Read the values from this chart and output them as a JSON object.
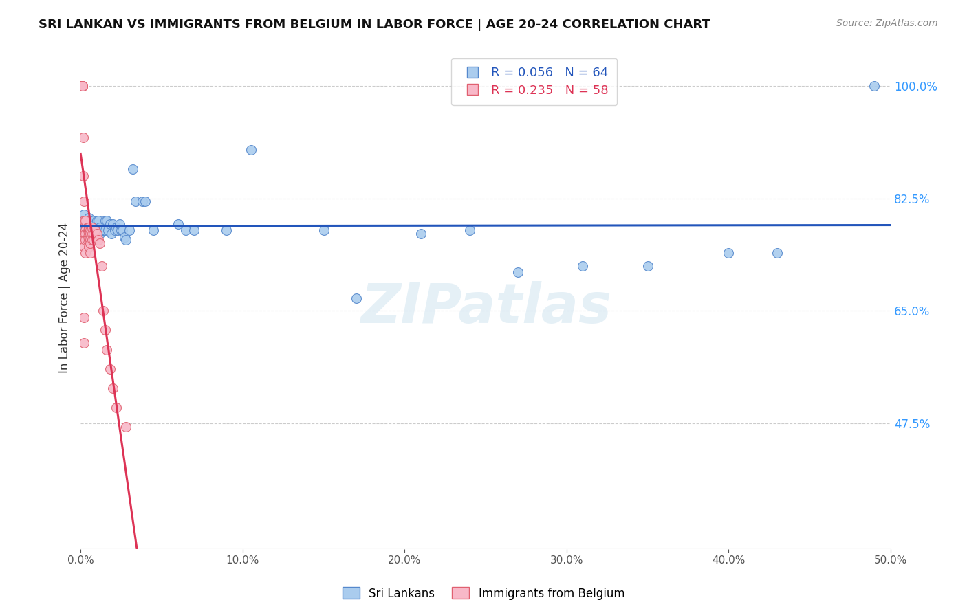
{
  "title": "SRI LANKAN VS IMMIGRANTS FROM BELGIUM IN LABOR FORCE | AGE 20-24 CORRELATION CHART",
  "source": "Source: ZipAtlas.com",
  "ylabel": "In Labor Force | Age 20-24",
  "right_yticks": [
    0.475,
    0.65,
    0.825,
    1.0
  ],
  "right_yticklabels": [
    "47.5%",
    "65.0%",
    "82.5%",
    "100.0%"
  ],
  "xmin": 0.0,
  "xmax": 0.5,
  "ymin": 0.28,
  "ymax": 1.06,
  "series_blue": {
    "label": "Sri Lankans",
    "R": 0.056,
    "N": 64,
    "color": "#aaccee",
    "edge_color": "#5588cc",
    "line_color": "#2255bb",
    "x": [
      0.001,
      0.001,
      0.002,
      0.002,
      0.003,
      0.003,
      0.004,
      0.004,
      0.004,
      0.005,
      0.005,
      0.005,
      0.006,
      0.006,
      0.007,
      0.007,
      0.008,
      0.008,
      0.009,
      0.009,
      0.01,
      0.01,
      0.011,
      0.011,
      0.012,
      0.012,
      0.013,
      0.014,
      0.015,
      0.015,
      0.016,
      0.017,
      0.018,
      0.019,
      0.02,
      0.021,
      0.022,
      0.023,
      0.024,
      0.025,
      0.026,
      0.027,
      0.028,
      0.03,
      0.032,
      0.034,
      0.038,
      0.04,
      0.045,
      0.06,
      0.065,
      0.07,
      0.09,
      0.105,
      0.15,
      0.17,
      0.21,
      0.24,
      0.27,
      0.31,
      0.35,
      0.4,
      0.43,
      0.49
    ],
    "y": [
      0.79,
      0.78,
      0.8,
      0.775,
      0.785,
      0.775,
      0.79,
      0.78,
      0.77,
      0.795,
      0.785,
      0.775,
      0.79,
      0.775,
      0.785,
      0.775,
      0.79,
      0.78,
      0.785,
      0.775,
      0.79,
      0.775,
      0.79,
      0.775,
      0.78,
      0.77,
      0.775,
      0.775,
      0.79,
      0.775,
      0.79,
      0.775,
      0.785,
      0.77,
      0.785,
      0.775,
      0.78,
      0.775,
      0.785,
      0.775,
      0.775,
      0.765,
      0.76,
      0.775,
      0.87,
      0.82,
      0.82,
      0.82,
      0.775,
      0.785,
      0.775,
      0.775,
      0.775,
      0.9,
      0.775,
      0.67,
      0.77,
      0.775,
      0.71,
      0.72,
      0.72,
      0.74,
      0.74,
      1.0
    ]
  },
  "series_pink": {
    "label": "Immigrants from Belgium",
    "R": 0.235,
    "N": 58,
    "color": "#f8b8c8",
    "edge_color": "#e06070",
    "line_color": "#dd3355",
    "x": [
      0.0005,
      0.0005,
      0.0005,
      0.0005,
      0.0005,
      0.0005,
      0.001,
      0.001,
      0.001,
      0.001,
      0.001,
      0.001,
      0.0015,
      0.0015,
      0.002,
      0.002,
      0.002,
      0.002,
      0.002,
      0.002,
      0.002,
      0.003,
      0.003,
      0.003,
      0.003,
      0.003,
      0.004,
      0.004,
      0.004,
      0.004,
      0.005,
      0.005,
      0.005,
      0.005,
      0.005,
      0.006,
      0.006,
      0.006,
      0.006,
      0.006,
      0.007,
      0.007,
      0.007,
      0.008,
      0.008,
      0.008,
      0.009,
      0.01,
      0.011,
      0.012,
      0.013,
      0.014,
      0.015,
      0.016,
      0.018,
      0.02,
      0.022,
      0.028
    ],
    "y": [
      1.0,
      1.0,
      1.0,
      1.0,
      1.0,
      1.0,
      1.0,
      1.0,
      1.0,
      1.0,
      1.0,
      1.0,
      0.92,
      0.86,
      0.82,
      0.79,
      0.77,
      0.76,
      0.75,
      0.64,
      0.6,
      0.79,
      0.775,
      0.77,
      0.76,
      0.74,
      0.78,
      0.77,
      0.77,
      0.76,
      0.78,
      0.775,
      0.77,
      0.76,
      0.75,
      0.775,
      0.77,
      0.76,
      0.755,
      0.74,
      0.78,
      0.77,
      0.76,
      0.775,
      0.77,
      0.76,
      0.775,
      0.77,
      0.76,
      0.755,
      0.72,
      0.65,
      0.62,
      0.59,
      0.56,
      0.53,
      0.5,
      0.47
    ]
  },
  "watermark_text": "ZIPatlas",
  "background_color": "#ffffff",
  "grid_color": "#cccccc"
}
